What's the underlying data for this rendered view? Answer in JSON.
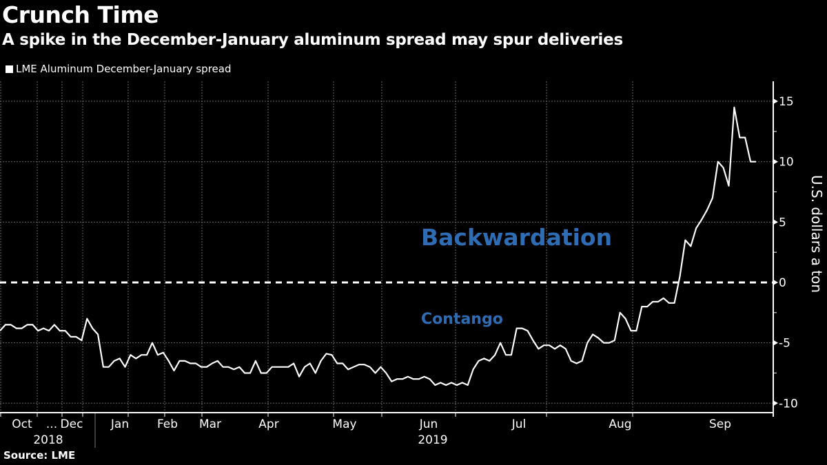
{
  "header": {
    "title": "Crunch Time",
    "subtitle": "A spike in the December-January aluminum spread may spur deliveries"
  },
  "legend": {
    "label": "LME Aluminum December-January spread"
  },
  "footer": {
    "source": "Source: LME"
  },
  "colors": {
    "background": "#000000",
    "line": "#ffffff",
    "annotation": "#2e6db4",
    "grid": "#666666"
  },
  "chart_data": {
    "type": "line",
    "title": "Crunch Time",
    "subtitle": "A spike in the December-January aluminum spread may spur deliveries",
    "xlabel": "",
    "ylabel": "U.S. dollars a ton",
    "ylim": [
      -11,
      17
    ],
    "yticks": [
      -10,
      -5,
      0,
      5,
      10,
      15
    ],
    "grid": true,
    "legend_position": "top-left",
    "x_tick_labels": [
      "Oct",
      "...",
      "Dec",
      "Jan",
      "Feb",
      "Mar",
      "Apr",
      "May",
      "Jun",
      "Jul",
      "Aug",
      "Sep"
    ],
    "x_year_labels": [
      {
        "label": "2018",
        "under": "Oct-Dec"
      },
      {
        "label": "2019",
        "under": "Jan-Sep"
      }
    ],
    "reference_line": {
      "y": 0,
      "style": "dashed"
    },
    "annotations": [
      {
        "text": "Backwardation",
        "region": "above zero"
      },
      {
        "text": "Contango",
        "region": "below zero"
      }
    ],
    "series": [
      {
        "name": "LME Aluminum December-January spread",
        "values": [
          -4.0,
          -3.5,
          -3.5,
          -3.8,
          -3.8,
          -3.5,
          -3.5,
          -4.0,
          -3.8,
          -4.0,
          -3.5,
          -4.0,
          -4.0,
          -4.5,
          -4.5,
          -4.8,
          -3.0,
          -3.8,
          -4.3,
          -7.0,
          -7.0,
          -6.5,
          -6.3,
          -7.0,
          -6.0,
          -6.3,
          -6.0,
          -6.0,
          -5.0,
          -6.0,
          -5.8,
          -6.5,
          -7.3,
          -6.5,
          -6.5,
          -6.7,
          -6.7,
          -7.0,
          -7.0,
          -6.7,
          -6.5,
          -7.0,
          -7.0,
          -7.2,
          -7.0,
          -7.5,
          -7.5,
          -6.5,
          -7.5,
          -7.5,
          -7.0,
          -7.0,
          -7.0,
          -7.0,
          -6.7,
          -7.8,
          -7.0,
          -6.7,
          -7.5,
          -6.5,
          -5.9,
          -6.0,
          -6.7,
          -6.7,
          -7.2,
          -7.0,
          -6.8,
          -6.8,
          -7.0,
          -7.5,
          -7.0,
          -7.5,
          -8.2,
          -8.0,
          -8.0,
          -7.8,
          -8.0,
          -8.0,
          -7.8,
          -8.0,
          -8.5,
          -8.3,
          -8.5,
          -8.3,
          -8.5,
          -8.3,
          -8.5,
          -7.2,
          -6.5,
          -6.3,
          -6.5,
          -6.0,
          -5.0,
          -6.0,
          -6.0,
          -3.8,
          -3.8,
          -4.0,
          -4.8,
          -5.5,
          -5.2,
          -5.2,
          -5.5,
          -5.2,
          -5.5,
          -6.5,
          -6.7,
          -6.5,
          -5.0,
          -4.3,
          -4.6,
          -5.0,
          -5.0,
          -4.8,
          -2.5,
          -3.0,
          -4.0,
          -4.0,
          -2.0,
          -2.0,
          -1.6,
          -1.6,
          -1.3,
          -1.7,
          -1.7,
          0.5,
          3.5,
          3.0,
          4.5,
          5.2,
          6.0,
          7.0,
          10.0,
          9.5,
          8.0,
          14.5,
          12.0,
          12.0,
          10.0,
          10.0
        ]
      }
    ]
  }
}
